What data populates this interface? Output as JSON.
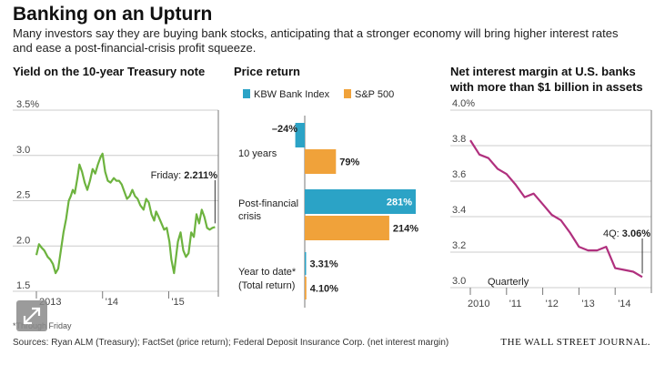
{
  "header": {
    "title": "Banking on an Upturn",
    "subtitle": "Many investors say they are buying bank stocks, anticipating that a stronger economy will bring higher interest rates and ease a post-financial-crisis profit squeeze."
  },
  "footer": {
    "footnote": "*Through Friday",
    "sources": "Sources: Ryan ALM (Treasury); FactSet (price return); Federal Deposit Insurance Corp. (net interest margin)",
    "brand": "THE WALL STREET JOURNAL."
  },
  "ui": {
    "expand_icon": "expand-arrows-icon"
  },
  "colors": {
    "green": "#6db33f",
    "blue": "#2ba3c6",
    "orange": "#f0a23a",
    "magenta": "#b0307e"
  },
  "chart_data": [
    {
      "type": "line",
      "title": "Yield on the 10-year Treasury note",
      "yticks": [
        "3.5%",
        "3.0",
        "2.5",
        "2.0",
        "1.5"
      ],
      "ylim": [
        1.5,
        3.5
      ],
      "xlim": [
        2013.0,
        2015.75
      ],
      "xticks": [
        {
          "x": 2013.0,
          "label": "2013"
        },
        {
          "x": 2014.0,
          "label": "'14"
        },
        {
          "x": 2015.0,
          "label": "'15"
        }
      ],
      "grid": true,
      "annotation": {
        "prefix": "Friday: ",
        "value": "2.211%"
      },
      "series": [
        {
          "x": [
            2013.0,
            2013.04,
            2013.08,
            2013.12,
            2013.17,
            2013.21,
            2013.25,
            2013.29,
            2013.33,
            2013.37,
            2013.41,
            2013.45,
            2013.49,
            2013.52,
            2013.55,
            2013.58,
            2013.62,
            2013.65,
            2013.69,
            2013.73,
            2013.77,
            2013.81,
            2013.85,
            2013.89,
            2013.93,
            2013.97,
            2014.0,
            2014.04,
            2014.08,
            2014.12,
            2014.17,
            2014.21,
            2014.25,
            2014.29,
            2014.33,
            2014.37,
            2014.41,
            2014.45,
            2014.49,
            2014.53,
            2014.57,
            2014.62,
            2014.66,
            2014.7,
            2014.74,
            2014.78,
            2014.81,
            2014.85,
            2014.89,
            2014.93,
            2014.97,
            2015.01,
            2015.04,
            2015.08,
            2015.11,
            2015.14,
            2015.18,
            2015.22,
            2015.26,
            2015.3,
            2015.34,
            2015.38,
            2015.42,
            2015.46,
            2015.5,
            2015.54,
            2015.58,
            2015.62,
            2015.66,
            2015.7
          ],
          "y": [
            1.9,
            2.02,
            1.98,
            1.95,
            1.88,
            1.85,
            1.8,
            1.7,
            1.75,
            1.95,
            2.15,
            2.3,
            2.5,
            2.55,
            2.62,
            2.58,
            2.75,
            2.9,
            2.82,
            2.7,
            2.62,
            2.72,
            2.85,
            2.8,
            2.9,
            2.98,
            3.02,
            2.82,
            2.72,
            2.7,
            2.75,
            2.72,
            2.72,
            2.68,
            2.6,
            2.52,
            2.55,
            2.62,
            2.55,
            2.52,
            2.45,
            2.4,
            2.52,
            2.48,
            2.35,
            2.28,
            2.38,
            2.32,
            2.25,
            2.18,
            2.2,
            2.05,
            1.85,
            1.7,
            1.88,
            2.05,
            2.15,
            1.95,
            1.88,
            1.92,
            2.15,
            2.1,
            2.35,
            2.25,
            2.4,
            2.32,
            2.2,
            2.18,
            2.2,
            2.21
          ]
        }
      ]
    },
    {
      "type": "bar",
      "title": "Price return",
      "legend": [
        {
          "name": "KBW Bank Index",
          "color": "#2ba3c6"
        },
        {
          "name": "S&P 500",
          "color": "#f0a23a"
        }
      ],
      "groups": [
        {
          "label_lines": [
            "10 years"
          ],
          "values": [
            -24,
            79
          ],
          "value_labels": [
            "–24%",
            "79%"
          ]
        },
        {
          "label_lines": [
            "Post-financial",
            "crisis"
          ],
          "values": [
            281,
            214
          ],
          "value_labels": [
            "281%",
            "214%"
          ]
        },
        {
          "label_lines": [
            "Year to date*",
            "(Total return)"
          ],
          "values": [
            3.31,
            4.1
          ],
          "value_labels": [
            "3.31%",
            "4.10%"
          ]
        }
      ]
    },
    {
      "type": "line",
      "title": "Net interest margin at U.S. banks with more than $1 billion in assets",
      "title_lines": [
        "Net interest margin at U.S. banks",
        "with more than $1 billion in assets"
      ],
      "yticks": [
        "4.0%",
        "3.8",
        "3.6",
        "3.4",
        "3.2",
        "3.0"
      ],
      "ylim": [
        3.0,
        4.0
      ],
      "xlim": [
        2010.0,
        2015.0
      ],
      "xticks": [
        {
          "x": 2010.0,
          "label": "2010"
        },
        {
          "x": 2011.0,
          "label": "'11"
        },
        {
          "x": 2012.0,
          "label": "'12"
        },
        {
          "x": 2013.0,
          "label": "'13"
        },
        {
          "x": 2014.0,
          "label": "'14"
        }
      ],
      "grid": true,
      "period_label": "Quarterly",
      "annotation": {
        "prefix": "4Q: ",
        "value": "3.06%"
      },
      "series": [
        {
          "x": [
            2010.0,
            2010.25,
            2010.5,
            2010.75,
            2011.0,
            2011.25,
            2011.5,
            2011.75,
            2012.0,
            2012.25,
            2012.5,
            2012.75,
            2013.0,
            2013.25,
            2013.5,
            2013.75,
            2014.0,
            2014.25,
            2014.5,
            2014.75
          ],
          "y": [
            3.83,
            3.75,
            3.73,
            3.67,
            3.64,
            3.58,
            3.51,
            3.53,
            3.47,
            3.41,
            3.38,
            3.31,
            3.23,
            3.21,
            3.21,
            3.23,
            3.11,
            3.1,
            3.09,
            3.06
          ]
        }
      ]
    }
  ]
}
